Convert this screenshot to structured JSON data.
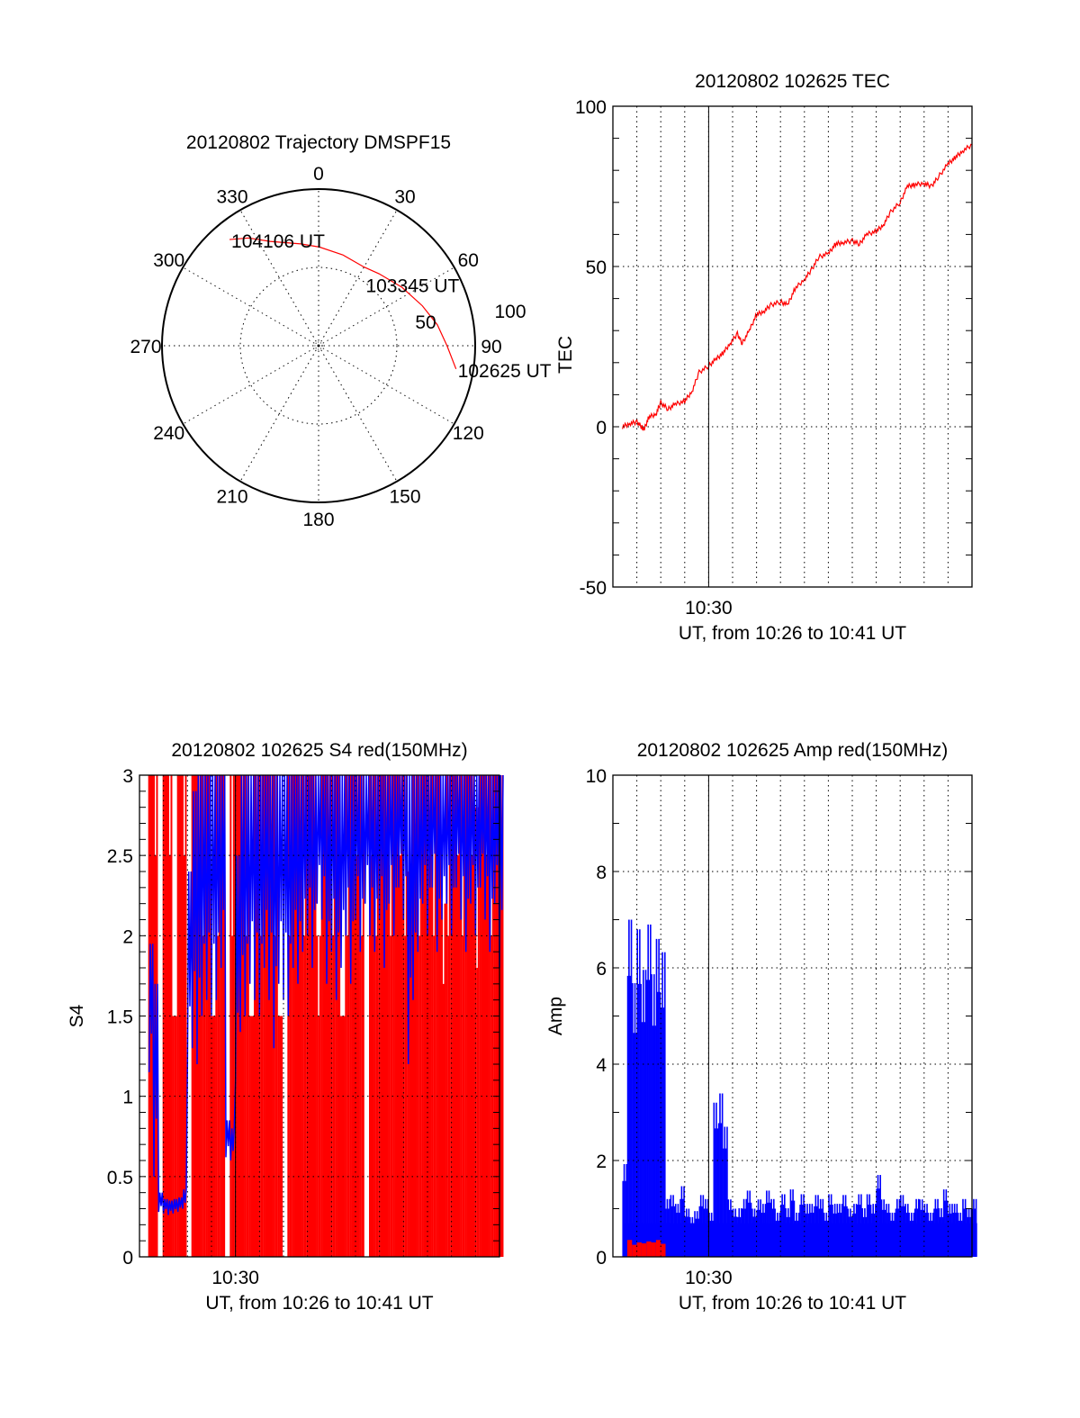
{
  "chart_data": [
    {
      "type": "polar",
      "title": "20120802 Trajectory DMSPF15",
      "angle_labels": [
        "0",
        "30",
        "60",
        "90",
        "120",
        "150",
        "180",
        "210",
        "240",
        "270",
        "300",
        "330"
      ],
      "radial_labels": [
        "50",
        "100"
      ],
      "radial_axis_label": "TEC",
      "rlim": [
        0,
        100
      ],
      "series": [
        {
          "name": "trajectory",
          "color": "#ff0000",
          "points": [
            [
              99.6,
              89
            ],
            [
              90,
              82
            ],
            [
              80,
              77
            ],
            [
              69,
              71
            ],
            [
              55,
              65
            ],
            [
              40,
              60
            ],
            [
              30,
              58
            ],
            [
              15,
              60
            ],
            [
              0.5,
              63
            ],
            [
              -10,
              66
            ],
            [
              -25,
              73.5
            ],
            [
              -33,
              82
            ],
            [
              -40,
              88.5
            ]
          ]
        }
      ],
      "time_labels": [
        {
          "text": "102625 UT",
          "point_index": 0
        },
        {
          "text": "103345 UT",
          "point_index": 6
        },
        {
          "text": "104106 UT",
          "point_index": 12
        }
      ]
    },
    {
      "type": "line",
      "title": "20120802 102625 TEC",
      "ylabel": "TEC",
      "xlabel": "UT, from 10:26 to 10:41 UT",
      "x_tick_label": "10:30",
      "x_unit": "minutes after 10:26",
      "xlim": [
        0,
        15
      ],
      "ylim": [
        -50,
        100
      ],
      "y_ticks": [
        "-50",
        "0",
        "50",
        "100"
      ],
      "series": [
        {
          "name": "TEC",
          "color": "#ff0000",
          "x": [
            0.4,
            0.7,
            1.0,
            1.2,
            1.3,
            1.5,
            1.8,
            2.0,
            2.3,
            2.6,
            3.0,
            3.3,
            3.6,
            4.0,
            4.3,
            4.6,
            4.9,
            5.2,
            5.4,
            5.7,
            6.0,
            6.3,
            6.6,
            7.0,
            7.3,
            7.6,
            8.0,
            8.3,
            8.6,
            9.0,
            9.3,
            9.6,
            10.0,
            10.3,
            10.6,
            11.0,
            11.3,
            11.6,
            12.0,
            12.3,
            12.6,
            13.0,
            13.3,
            13.6,
            14.0,
            14.3,
            14.6,
            15.0
          ],
          "y": [
            0,
            1,
            1.5,
            0,
            -1,
            3,
            4,
            7.5,
            5.5,
            7,
            8,
            11,
            17,
            19,
            21,
            23,
            26,
            29,
            26,
            30,
            35,
            36,
            38,
            39,
            38,
            43,
            46,
            49,
            53,
            54,
            57,
            57.5,
            58,
            57,
            60,
            61,
            63,
            67,
            70,
            75,
            75.5,
            76,
            75,
            78,
            82,
            84,
            86,
            88
          ]
        }
      ]
    },
    {
      "type": "bar",
      "title": "20120802 102625 S4 red(150MHz)",
      "ylabel": "S4",
      "xlabel": "UT, from 10:26 to 10:41 UT",
      "x_tick_label": "10:30",
      "x_unit": "minutes after 10:26",
      "xlim": [
        0,
        15
      ],
      "ylim": [
        0,
        3
      ],
      "y_ticks": [
        "0",
        "0.5",
        "1",
        "1.5",
        "2",
        "2.5",
        "3"
      ],
      "t_start": 0.4,
      "t_step": 0.2,
      "series": [
        {
          "name": "S4 red",
          "color": "#ff0000",
          "values": [
            3,
            3,
            0,
            3,
            3,
            1.5,
            3,
            3,
            0,
            3,
            3,
            3,
            3,
            1.5,
            3,
            3,
            0,
            3,
            3,
            3,
            3,
            1.5,
            3,
            3,
            3,
            3,
            3,
            1.5,
            0,
            3,
            3,
            3,
            3,
            3,
            3,
            2,
            3,
            3,
            3,
            3,
            1.5,
            3,
            3,
            3,
            3,
            0,
            3,
            3,
            3,
            3,
            3,
            3,
            3,
            3,
            2.4,
            3,
            3,
            3,
            3,
            3,
            3,
            2.2,
            3,
            3,
            3,
            3,
            3,
            3,
            2.8,
            3,
            3,
            3,
            3,
            3
          ]
        },
        {
          "name": "S4 blue",
          "color": "#0000ff",
          "ranges": [
            [
              1.15,
              1.95
            ],
            [
              0.5,
              1.7
            ],
            [
              0.28,
              0.4
            ],
            [
              0.27,
              0.36
            ],
            [
              0.26,
              0.35
            ],
            [
              0.27,
              0.36
            ],
            [
              0.28,
              0.37
            ],
            [
              0.3,
              0.42
            ],
            [
              1.2,
              2.4
            ],
            [
              1.3,
              2.9
            ],
            [
              1.2,
              3
            ],
            [
              1.5,
              3
            ],
            [
              1.6,
              3
            ],
            [
              1.5,
              3
            ],
            [
              1.6,
              3
            ],
            [
              1.8,
              3
            ],
            [
              0.62,
              0.85
            ],
            [
              0.6,
              0.8
            ],
            [
              1.1,
              2.5
            ],
            [
              1.4,
              3
            ],
            [
              1.5,
              3
            ],
            [
              1.7,
              3
            ],
            [
              1.6,
              3
            ],
            [
              1.5,
              3
            ],
            [
              1.8,
              3
            ],
            [
              1.6,
              3
            ],
            [
              1.3,
              3
            ],
            [
              1.7,
              3
            ],
            [
              1.6,
              3
            ],
            [
              1.5,
              3
            ],
            [
              1.8,
              3
            ],
            [
              1.7,
              3
            ],
            [
              1.9,
              3
            ],
            [
              2.0,
              3
            ],
            [
              1.8,
              3
            ],
            [
              2.2,
              3
            ],
            [
              2.1,
              3
            ],
            [
              1.7,
              3
            ],
            [
              1.9,
              3
            ],
            [
              1.6,
              3
            ],
            [
              1.8,
              3
            ],
            [
              2.0,
              3
            ],
            [
              1.7,
              3
            ],
            [
              2.1,
              3
            ],
            [
              1.9,
              3
            ],
            [
              2.2,
              3
            ],
            [
              2.0,
              3
            ],
            [
              1.9,
              3
            ],
            [
              2.1,
              3
            ],
            [
              1.8,
              3
            ],
            [
              2.2,
              3
            ],
            [
              2.0,
              3
            ],
            [
              2.3,
              3
            ],
            [
              2.1,
              3
            ],
            [
              1.2,
              3
            ],
            [
              1.6,
              3
            ],
            [
              1.9,
              3
            ],
            [
              2.2,
              3
            ],
            [
              2.0,
              3
            ],
            [
              2.3,
              3
            ],
            [
              1.9,
              3
            ],
            [
              2.1,
              3
            ],
            [
              2.2,
              3
            ],
            [
              2.0,
              3
            ],
            [
              2.3,
              3
            ],
            [
              2.1,
              3
            ],
            [
              1.9,
              3
            ],
            [
              2.2,
              3
            ],
            [
              2.0,
              3
            ],
            [
              2.3,
              3
            ],
            [
              2.1,
              3
            ],
            [
              1.9,
              3
            ],
            [
              2.2,
              3
            ],
            [
              1.8,
              3
            ]
          ]
        }
      ]
    },
    {
      "type": "bar",
      "title": "20120802 102625 Amp red(150MHz)",
      "ylabel": "Amp",
      "xlabel": "UT, from 10:26 to 10:41 UT",
      "x_tick_label": "10:30",
      "x_unit": "minutes after 10:26",
      "xlim": [
        0,
        15
      ],
      "ylim": [
        0,
        10
      ],
      "y_ticks": [
        "0",
        "2",
        "4",
        "6",
        "8",
        "10"
      ],
      "t_start": 0.4,
      "t_step": 0.2,
      "series": [
        {
          "name": "Amp blue",
          "color": "#0000ff",
          "values": [
            2.1,
            7.0,
            6.2,
            6.8,
            6.5,
            6.9,
            6.4,
            6.6,
            6.9,
            1.2,
            1.4,
            1.1,
            1.6,
            1.0,
            0.9,
            0.95,
            1.4,
            1.2,
            1.0,
            3.2,
            3.7,
            2.7,
            1.3,
            1.0,
            1.1,
            1.2,
            1.5,
            1.0,
            1.3,
            1.1,
            1.5,
            1.2,
            1.0,
            1.3,
            1.1,
            1.4,
            1.0,
            1.3,
            1.2,
            1.1,
            1.4,
            1.2,
            1.0,
            1.3,
            1.2,
            1.1,
            1.4,
            1.0,
            1.2,
            1.3,
            1.1,
            1.3,
            1.2,
            1.7,
            1.3,
            1.1,
            1.0,
            1.2,
            1.4,
            1.1,
            1.0,
            1.2,
            1.3,
            1.1,
            1.0,
            1.2,
            1.1,
            1.4,
            1.2,
            1.1,
            1.0,
            1.2,
            1.1,
            1.2
          ]
        },
        {
          "name": "Amp red",
          "color": "#ff0000",
          "values": [
            0,
            0.35,
            0.25,
            0.3,
            0.28,
            0.32,
            0.3,
            0.35,
            0.27
          ]
        }
      ]
    }
  ]
}
